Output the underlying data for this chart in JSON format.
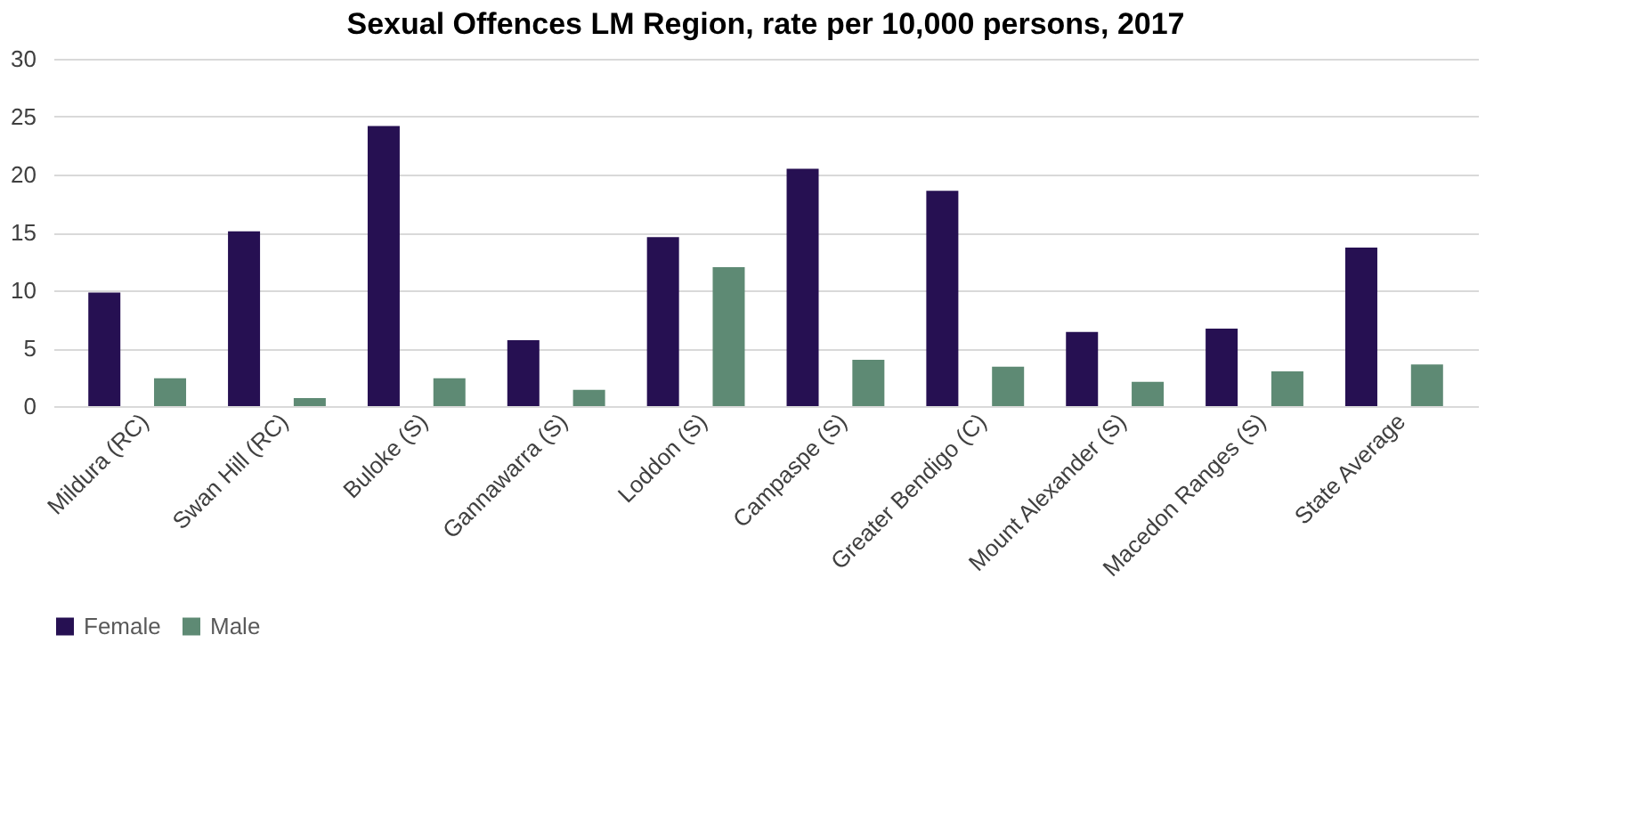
{
  "chart_data": {
    "type": "bar",
    "title": "Sexual Offences LM Region, rate per 10,000 persons, 2017",
    "categories": [
      "Mildura (RC)",
      "Swan Hill (RC)",
      "Buloke (S)",
      "Gannawarra (S)",
      "Loddon (S)",
      "Campaspe (S)",
      "Greater Bendigo (C)",
      "Mount Alexander (S)",
      "Macedon Ranges (S)",
      "State Average"
    ],
    "series": [
      {
        "name": "Female",
        "color": "#261052",
        "values": [
          9.8,
          15.1,
          24.2,
          5.7,
          14.6,
          20.5,
          18.6,
          6.4,
          6.7,
          13.7
        ]
      },
      {
        "name": "Male",
        "color": "#5e8a74",
        "values": [
          2.4,
          0.7,
          2.4,
          1.4,
          12.0,
          4.0,
          3.4,
          2.1,
          3.0,
          3.6
        ]
      }
    ],
    "ylim": [
      0,
      30
    ],
    "yticks": [
      0,
      5,
      10,
      15,
      20,
      25,
      30
    ],
    "grid": "y",
    "legend": "bottom"
  }
}
